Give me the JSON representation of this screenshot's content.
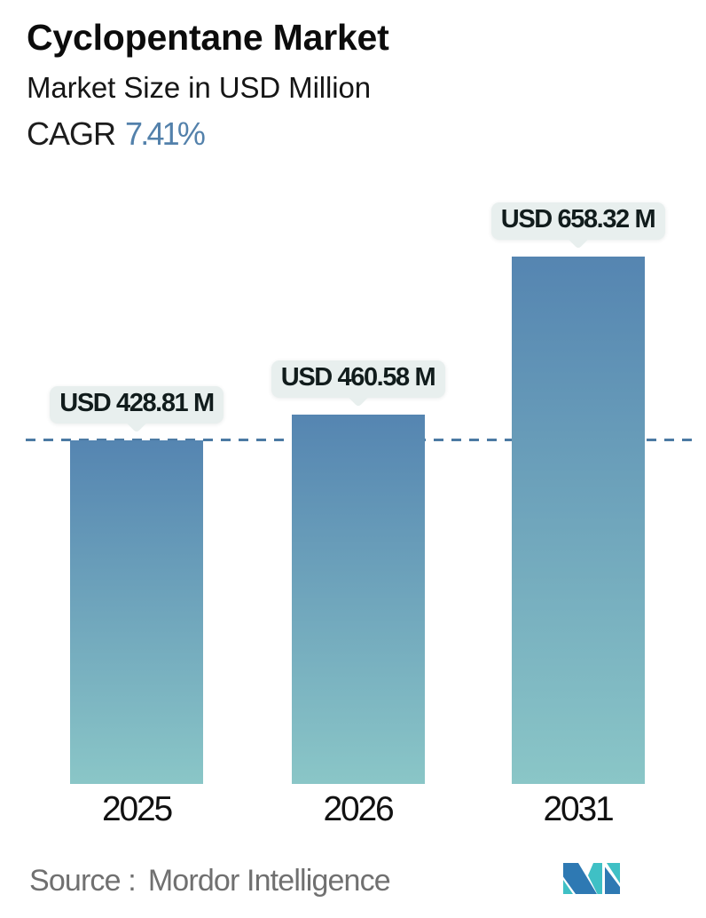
{
  "header": {
    "title": "Cyclopentane Market",
    "subtitle": "Market Size in USD Million",
    "cagr_label": "CAGR",
    "cagr_value": "7.41%"
  },
  "chart_data": {
    "type": "bar",
    "title": "Cyclopentane Market",
    "ylabel": "Market Size in USD Million",
    "cagr_percent": 7.41,
    "categories": [
      "2025",
      "2026",
      "2031"
    ],
    "values": [
      428.81,
      460.58,
      658.32
    ],
    "bar_labels": [
      "USD 428.81 M",
      "USD 460.58 M",
      "USD 658.32 M"
    ],
    "reference_line": {
      "value": 428.81,
      "style": "dashed"
    },
    "ylim": [
      0,
      979
    ],
    "grid": "off",
    "legend": "none"
  },
  "footer": {
    "source_label": "Source :",
    "source_value": "Mordor Intelligence"
  },
  "colors": {
    "bar_top": "#5585b1",
    "bar_bottom": "#8ac6c7",
    "dash_line": "#4c7aa3",
    "tooltip_bg": "#e8efee",
    "tooltip_text": "#111c1c",
    "cagr_value": "#5381ab"
  }
}
